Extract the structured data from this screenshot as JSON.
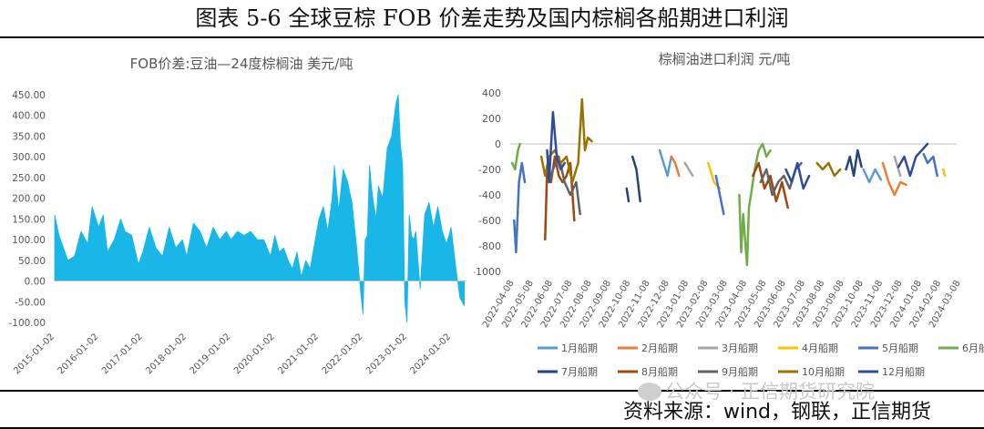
{
  "figure_title": "图表 5-6 全球豆棕 FOB 价差走势及国内棕榈各船期进口利润",
  "source_label": "资料来源：wind，钢联，正信期货",
  "watermark": "公众号 · 正信期货研究院",
  "chart_data": [
    {
      "type": "area",
      "title": "FOB价差:豆油—24度棕榈油  美元/吨",
      "color": "#19b6e8",
      "ylim": [
        -100,
        450
      ],
      "yticks": [
        "450.00",
        "400.00",
        "350.00",
        "300.00",
        "250.00",
        "200.00",
        "150.00",
        "100.00",
        "50.00",
        "0.00",
        "-50.00",
        "-100.00"
      ],
      "xticks": [
        "2015-01-02",
        "2016-01-02",
        "2017-01-02",
        "2018-01-02",
        "2019-01-02",
        "2020-01-02",
        "2021-01-02",
        "2022-01-02",
        "2023-01-02",
        "2024-01-02"
      ],
      "x": [
        2015.0,
        2015.1,
        2015.2,
        2015.3,
        2015.45,
        2015.6,
        2015.75,
        2015.85,
        2016.0,
        2016.1,
        2016.2,
        2016.35,
        2016.5,
        2016.6,
        2016.75,
        2016.9,
        2017.0,
        2017.15,
        2017.3,
        2017.45,
        2017.6,
        2017.75,
        2017.9,
        2018.0,
        2018.15,
        2018.3,
        2018.45,
        2018.6,
        2018.75,
        2018.9,
        2019.0,
        2019.15,
        2019.3,
        2019.45,
        2019.6,
        2019.75,
        2019.9,
        2020.0,
        2020.1,
        2020.2,
        2020.3,
        2020.4,
        2020.5,
        2020.6,
        2020.7,
        2020.8,
        2020.9,
        2021.0,
        2021.1,
        2021.2,
        2021.3,
        2021.35,
        2021.45,
        2021.55,
        2021.65,
        2021.75,
        2021.85,
        2021.95,
        2022.0,
        2022.05,
        2022.1,
        2022.15,
        2022.2,
        2022.25,
        2022.3,
        2022.35,
        2022.45,
        2022.55,
        2022.65,
        2022.75,
        2022.8,
        2022.85,
        2022.9,
        2022.95,
        2023.0,
        2023.05,
        2023.1,
        2023.15,
        2023.2,
        2023.3,
        2023.4,
        2023.5,
        2023.6,
        2023.7,
        2023.8,
        2023.9,
        2024.0,
        2024.1,
        2024.2,
        2024.3
      ],
      "y": [
        160,
        110,
        80,
        50,
        60,
        120,
        90,
        180,
        130,
        160,
        70,
        100,
        150,
        120,
        110,
        40,
        70,
        130,
        80,
        60,
        130,
        80,
        100,
        60,
        140,
        120,
        80,
        130,
        100,
        120,
        100,
        120,
        110,
        120,
        100,
        100,
        60,
        110,
        70,
        80,
        50,
        30,
        70,
        10,
        50,
        30,
        90,
        150,
        180,
        120,
        200,
        280,
        170,
        270,
        240,
        190,
        90,
        -30,
        -80,
        100,
        110,
        280,
        220,
        180,
        150,
        230,
        200,
        320,
        350,
        430,
        450,
        330,
        280,
        -50,
        -100,
        160,
        110,
        100,
        120,
        -20,
        160,
        190,
        130,
        180,
        120,
        90,
        130,
        40,
        -40,
        -60
      ]
    },
    {
      "type": "line",
      "title": "棕榈油进口利润  元/吨",
      "ylim": [
        -1000,
        400
      ],
      "yticks": [
        400,
        200,
        0,
        -200,
        -400,
        -600,
        -800,
        -1000
      ],
      "xticks": [
        "2022-04-08",
        "2022-05-08",
        "2022-06-08",
        "2022-07-08",
        "2022-08-08",
        "2022-09-08",
        "2022-10-08",
        "2022-11-08",
        "2022-12-08",
        "2023-01-08",
        "2023-02-08",
        "2023-03-08",
        "2023-04-08",
        "2023-05-08",
        "2023-06-08",
        "2023-07-08",
        "2023-08-08",
        "2023-09-08",
        "2023-10-08",
        "2023-11-08",
        "2023-12-08",
        "2024-01-08",
        "2024-02-08",
        "2024-03-08"
      ],
      "series": [
        {
          "name": "1月船期",
          "color": "#5b9bd5",
          "segments": [
            [
              [
                7.7,
                -50
              ],
              [
                7.9,
                -150
              ],
              [
                8.1,
                -250
              ],
              [
                8.3,
                -100
              ]
            ],
            [
              [
                18.2,
                -200
              ],
              [
                18.5,
                -300
              ],
              [
                18.8,
                -200
              ],
              [
                19.1,
                -280
              ]
            ]
          ]
        },
        {
          "name": "2月船期",
          "color": "#ed7d31",
          "segments": [
            [
              [
                8.3,
                -100
              ],
              [
                8.5,
                -150
              ],
              [
                8.7,
                -250
              ]
            ],
            [
              [
                19.2,
                -150
              ],
              [
                19.5,
                -300
              ],
              [
                19.8,
                -400
              ],
              [
                20.1,
                -300
              ],
              [
                20.4,
                -320
              ]
            ]
          ]
        },
        {
          "name": "3月船期",
          "color": "#a5a5a5",
          "segments": [
            [
              [
                9.0,
                -150
              ],
              [
                9.2,
                -200
              ],
              [
                9.4,
                -250
              ]
            ],
            [
              [
                19.8,
                -100
              ],
              [
                20.1,
                -250
              ]
            ]
          ]
        },
        {
          "name": "4月船期",
          "color": "#ffc000",
          "segments": [
            [
              [
                10.2,
                -150
              ],
              [
                10.5,
                -300
              ],
              [
                10.8,
                -350
              ]
            ],
            [
              [
                22.3,
                -200
              ],
              [
                22.4,
                -250
              ]
            ]
          ]
        },
        {
          "name": "5月船期",
          "color": "#4472c4",
          "segments": [
            [
              [
                0.2,
                -600
              ],
              [
                0.3,
                -850
              ],
              [
                0.45,
                -300
              ],
              [
                0.6,
                -150
              ],
              [
                0.75,
                -300
              ]
            ],
            [
              [
                10.6,
                -250
              ],
              [
                10.8,
                -400
              ],
              [
                11.0,
                -550
              ]
            ],
            [
              [
                21.3,
                -80
              ],
              [
                21.5,
                -150
              ],
              [
                21.8,
                -100
              ],
              [
                22.0,
                -250
              ]
            ]
          ]
        },
        {
          "name": "6月船期",
          "color": "#70ad47",
          "segments": [
            [
              [
                0.1,
                -150
              ],
              [
                0.25,
                -200
              ],
              [
                0.4,
                -50
              ],
              [
                0.5,
                0
              ]
            ],
            [
              [
                11.8,
                -400
              ],
              [
                11.9,
                -850
              ],
              [
                12.0,
                -550
              ],
              [
                12.1,
                -750
              ],
              [
                12.2,
                -950
              ],
              [
                12.3,
                -500
              ],
              [
                12.4,
                -400
              ],
              [
                12.6,
                -200
              ],
              [
                12.8,
                -50
              ],
              [
                13.0,
                0
              ],
              [
                13.2,
                -100
              ],
              [
                13.4,
                -50
              ]
            ]
          ]
        },
        {
          "name": "7月船期",
          "color": "#264478",
          "segments": [
            [
              [
                6.0,
                -350
              ],
              [
                6.1,
                -450
              ]
            ],
            [
              [
                6.3,
                -100
              ],
              [
                6.5,
                -200
              ],
              [
                6.7,
                -450
              ]
            ],
            [
              [
                17.3,
                -200
              ],
              [
                17.5,
                -100
              ],
              [
                17.7,
                -250
              ],
              [
                17.9,
                -50
              ],
              [
                18.1,
                -180
              ]
            ]
          ]
        },
        {
          "name": "8月船期",
          "color": "#9e480e",
          "segments": [
            [
              [
                1.8,
                -750
              ],
              [
                1.9,
                -200
              ],
              [
                2.1,
                -300
              ],
              [
                2.3,
                -100
              ],
              [
                2.5,
                -250
              ],
              [
                2.7,
                -300
              ],
              [
                2.9,
                -250
              ],
              [
                3.1,
                -150
              ],
              [
                3.3,
                -600
              ]
            ],
            [
              [
                12.5,
                -250
              ],
              [
                12.8,
                -150
              ],
              [
                13.1,
                -350
              ],
              [
                13.4,
                -250
              ],
              [
                13.7,
                -450
              ],
              [
                14.0,
                -300
              ],
              [
                14.3,
                -500
              ]
            ]
          ]
        },
        {
          "name": "9月船期",
          "color": "#636363",
          "segments": [
            [
              [
                2.0,
                -300
              ],
              [
                2.2,
                -200
              ],
              [
                2.5,
                -100
              ],
              [
                2.8,
                -300
              ],
              [
                3.1,
                -400
              ],
              [
                3.4,
                -300
              ],
              [
                3.6,
                -550
              ]
            ],
            [
              [
                12.9,
                -300
              ],
              [
                13.2,
                -200
              ],
              [
                13.5,
                -400
              ],
              [
                13.8,
                -300
              ],
              [
                14.1,
                -250
              ],
              [
                14.4,
                -350
              ],
              [
                14.7,
                -200
              ],
              [
                15.0,
                -150
              ]
            ]
          ]
        },
        {
          "name": "10月船期",
          "color": "#997300",
          "segments": [
            [
              [
                1.6,
                -100
              ],
              [
                1.8,
                -250
              ],
              [
                2.0,
                -100
              ],
              [
                2.3,
                -50
              ],
              [
                2.6,
                -150
              ],
              [
                2.9,
                -100
              ],
              [
                3.2,
                -300
              ],
              [
                3.5,
                -150
              ],
              [
                3.7,
                350
              ],
              [
                3.85,
                -50
              ],
              [
                4.0,
                50
              ],
              [
                4.2,
                20
              ]
            ],
            [
              [
                15.8,
                -150
              ],
              [
                16.1,
                -200
              ],
              [
                16.4,
                -150
              ],
              [
                16.7,
                -250
              ],
              [
                17.0,
                -200
              ]
            ]
          ]
        },
        {
          "name": "12月船期",
          "color": "#2f4b9e",
          "segments": [
            [
              [
                1.9,
                -50
              ],
              [
                2.0,
                -300
              ],
              [
                2.2,
                250
              ],
              [
                2.4,
                -100
              ],
              [
                2.6,
                -200
              ],
              [
                2.8,
                -150
              ]
            ],
            [
              [
                14.2,
                -200
              ],
              [
                14.5,
                -300
              ],
              [
                14.8,
                -150
              ],
              [
                15.1,
                -350
              ],
              [
                15.4,
                -250
              ]
            ],
            [
              [
                20.0,
                -180
              ],
              [
                20.3,
                -100
              ],
              [
                20.6,
                -250
              ],
              [
                20.9,
                -100
              ],
              [
                21.2,
                -50
              ],
              [
                21.5,
                0
              ]
            ]
          ]
        }
      ]
    }
  ]
}
